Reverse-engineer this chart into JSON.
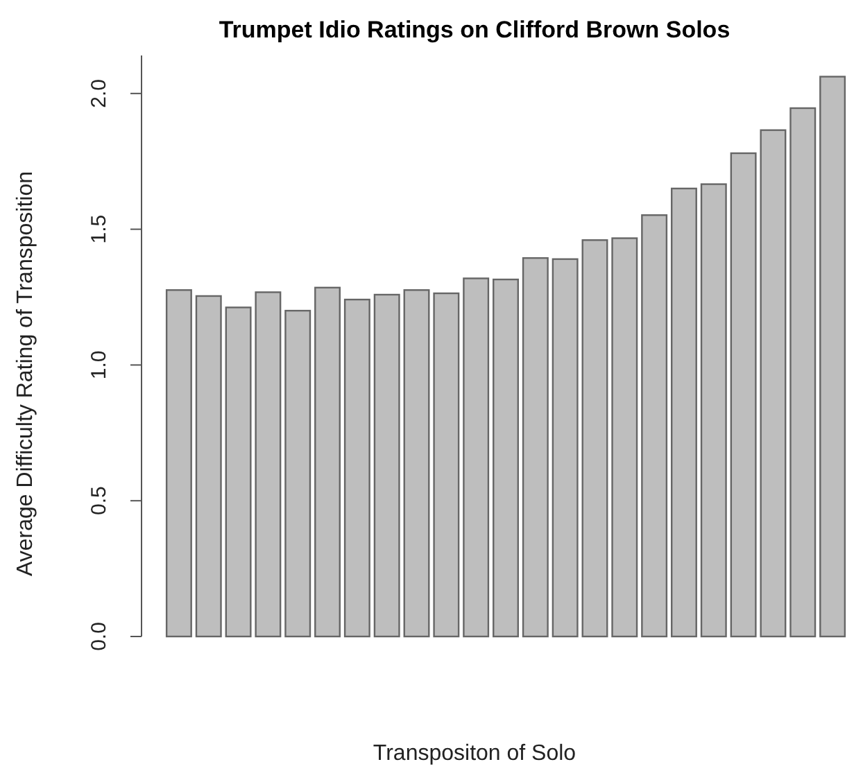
{
  "chart_data": {
    "type": "bar",
    "title": "Trumpet Idio Ratings on Clifford Brown Solos",
    "xlabel": "Transpositon of Solo",
    "ylabel": "Average Difficulty Rating of Transposition",
    "categories": [
      null,
      null,
      null,
      null,
      null,
      null,
      null,
      null,
      null,
      null,
      null,
      null,
      null,
      null,
      null,
      null,
      null,
      null,
      null,
      null,
      null,
      null,
      null
    ],
    "values": [
      1.276,
      1.254,
      1.212,
      1.268,
      1.2,
      1.285,
      1.241,
      1.259,
      1.276,
      1.264,
      1.319,
      1.315,
      1.394,
      1.39,
      1.46,
      1.467,
      1.552,
      1.65,
      1.666,
      1.78,
      1.865,
      1.946,
      2.062
    ],
    "color": "#bebebe",
    "ylim": [
      0,
      2.14
    ],
    "yticks": [
      {
        "value": 0,
        "label": "0.0"
      },
      {
        "value": 0.5,
        "label": "0.5"
      },
      {
        "value": 1,
        "label": "1.0"
      },
      {
        "value": 1.5,
        "label": "1.5"
      },
      {
        "value": 2,
        "label": "2.0"
      }
    ]
  }
}
